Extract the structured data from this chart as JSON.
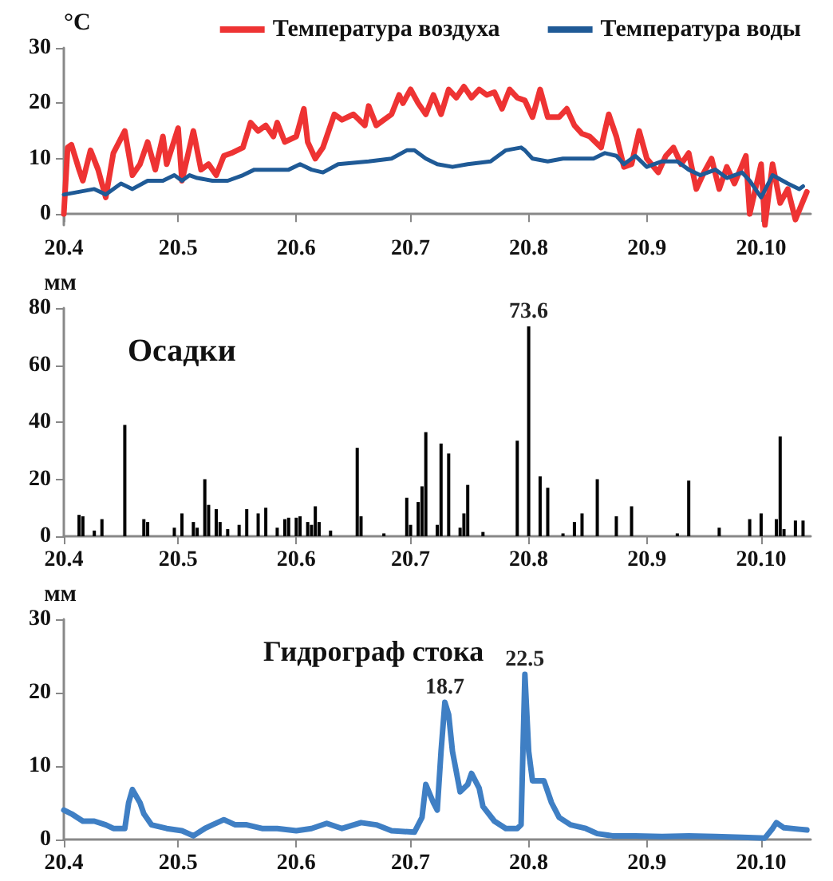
{
  "chart_data": [
    {
      "type": "line",
      "ylabel": "°C",
      "xlim": [
        "--04-20",
        "--11-02"
      ],
      "xticks": [
        {
          "value": "--04-20",
          "label": "20.4"
        },
        {
          "value": "--05-20",
          "label": "20.5"
        },
        {
          "value": "--06-20",
          "label": "20.6"
        },
        {
          "value": "--07-20",
          "label": "20.7"
        },
        {
          "value": "--08-20",
          "label": "20.8"
        },
        {
          "value": "--09-20",
          "label": "20.9"
        },
        {
          "value": "--10-20",
          "label": "20.10"
        }
      ],
      "ylim": [
        -2,
        30
      ],
      "yticks": [
        0,
        10,
        20,
        30
      ],
      "legend": "top right",
      "marker": "none",
      "line_style": "solid",
      "series": [
        {
          "name": "Температура воздуха",
          "color": "#ee3333",
          "x": [
            "--04-20",
            "--04-21",
            "--04-22",
            "--04-24",
            "--04-25",
            "--04-27",
            "--04-29",
            "--05-01",
            "--05-03",
            "--05-06",
            "--05-08",
            "--05-10",
            "--05-12",
            "--05-14",
            "--05-16",
            "--05-17",
            "--05-20",
            "--05-21",
            "--05-24",
            "--05-26",
            "--05-28",
            "--05-30",
            "--06-01",
            "--06-03",
            "--06-06",
            "--06-08",
            "--06-10",
            "--06-12",
            "--06-14",
            "--06-15",
            "--06-17",
            "--06-20",
            "--06-22",
            "--06-23",
            "--06-25",
            "--06-27",
            "--06-30",
            "--07-02",
            "--07-05",
            "--07-08",
            "--07-09",
            "--07-11",
            "--07-15",
            "--07-17",
            "--07-18",
            "--07-20",
            "--07-22",
            "--07-24",
            "--07-26",
            "--07-28",
            "--07-30",
            "--08-01",
            "--08-03",
            "--08-05",
            "--08-07",
            "--08-09",
            "--08-11",
            "--08-13",
            "--08-15",
            "--08-17",
            "--08-19",
            "--08-21",
            "--08-23",
            "--08-25",
            "--08-28",
            "--08-30",
            "--09-01",
            "--09-03",
            "--09-05",
            "--09-08",
            "--09-10",
            "--09-12",
            "--09-14",
            "--09-16",
            "--09-18",
            "--09-20",
            "--09-23",
            "--09-25",
            "--09-27",
            "--09-29",
            "--10-01",
            "--10-03",
            "--10-05",
            "--10-07",
            "--10-09",
            "--10-11",
            "--10-13",
            "--10-16",
            "--10-17",
            "--10-20",
            "--10-21",
            "--10-23",
            "--10-25",
            "--10-27",
            "--10-29",
            "--11-01"
          ],
          "values": [
            0,
            12,
            12.5,
            8,
            6,
            11.5,
            8,
            3,
            11,
            15,
            7,
            9,
            13,
            8,
            14,
            9,
            15.5,
            6,
            15,
            8,
            9,
            7,
            10.5,
            11,
            12,
            16.5,
            15,
            16,
            14,
            16.5,
            13,
            14,
            19,
            13,
            10,
            12,
            18,
            17,
            18,
            16,
            19.5,
            16,
            18,
            21.5,
            20,
            22.5,
            20,
            18,
            21.5,
            18,
            22.5,
            21,
            23,
            21,
            22.5,
            21.5,
            22,
            19,
            22.5,
            21,
            20.5,
            17.5,
            22.5,
            17.5,
            17.5,
            19,
            16,
            14.5,
            14,
            12,
            18,
            14,
            8.5,
            9,
            15,
            10,
            7.5,
            10.5,
            12,
            9,
            11,
            4.5,
            7.5,
            10,
            4.5,
            8.5,
            5.5,
            10.5,
            0,
            9,
            -2,
            9,
            2,
            4.5,
            -1,
            4
          ]
        },
        {
          "name": "Температура воды",
          "color": "#1f5a96",
          "x": [
            "--04-20",
            "--04-24",
            "--04-28",
            "--05-01",
            "--05-05",
            "--05-08",
            "--05-12",
            "--05-16",
            "--05-19",
            "--05-21",
            "--05-23",
            "--05-25",
            "--05-29",
            "--06-02",
            "--06-06",
            "--06-09",
            "--06-14",
            "--06-18",
            "--06-21",
            "--06-24",
            "--06-27",
            "--07-01",
            "--07-09",
            "--07-15",
            "--07-19",
            "--07-21",
            "--07-24",
            "--07-27",
            "--07-31",
            "--08-04",
            "--08-10",
            "--08-14",
            "--08-18",
            "--08-19",
            "--08-21",
            "--08-25",
            "--08-29",
            "--09-02",
            "--09-06",
            "--09-09",
            "--09-12",
            "--09-14",
            "--09-17",
            "--09-20",
            "--09-24",
            "--09-28",
            "--10-01",
            "--10-04",
            "--10-08",
            "--10-11",
            "--10-15",
            "--10-17",
            "--10-20",
            "--10-23",
            "--10-27",
            "--10-30",
            "--10-31"
          ],
          "values": [
            3.5,
            4,
            4.5,
            3.5,
            5.5,
            4.5,
            6,
            6,
            7,
            6,
            7,
            6.5,
            6,
            6,
            7,
            8,
            8,
            8,
            9,
            8,
            7.5,
            9,
            9.5,
            10,
            11.5,
            11.5,
            10,
            9,
            8.5,
            9,
            9.5,
            11.5,
            12,
            11.5,
            10,
            9.5,
            10,
            10,
            10,
            11,
            10.5,
            9,
            10.5,
            8.5,
            9.5,
            9.5,
            8,
            7,
            8,
            6.5,
            7.5,
            6,
            3,
            7,
            5.5,
            4.5,
            5
          ]
        }
      ]
    },
    {
      "type": "bar",
      "title": "Осадки",
      "ylabel": "мм",
      "color": "#000000",
      "xlim": [
        "--04-20",
        "--11-02"
      ],
      "xticks": [
        {
          "value": "--04-20",
          "label": "20.4"
        },
        {
          "value": "--05-20",
          "label": "20.5"
        },
        {
          "value": "--06-20",
          "label": "20.6"
        },
        {
          "value": "--07-20",
          "label": "20.7"
        },
        {
          "value": "--08-20",
          "label": "20.8"
        },
        {
          "value": "--09-20",
          "label": "20.9"
        },
        {
          "value": "--10-20",
          "label": "20.10"
        }
      ],
      "ylim": [
        0,
        80
      ],
      "yticks": [
        0,
        20,
        40,
        60,
        80
      ],
      "x": [
        "--04-24",
        "--04-25",
        "--04-28",
        "--04-30",
        "--05-06",
        "--05-11",
        "--05-12",
        "--05-19",
        "--05-21",
        "--05-24",
        "--05-25",
        "--05-27",
        "--05-28",
        "--05-30",
        "--05-31",
        "--06-02",
        "--06-05",
        "--06-07",
        "--06-10",
        "--06-12",
        "--06-15",
        "--06-17",
        "--06-18",
        "--06-20",
        "--06-21",
        "--06-23",
        "--06-24",
        "--06-25",
        "--06-26",
        "--06-29",
        "--07-06",
        "--07-07",
        "--07-13",
        "--07-19",
        "--07-20",
        "--07-22",
        "--07-23",
        "--07-24",
        "--07-27",
        "--07-28",
        "--07-30",
        "--08-02",
        "--08-03",
        "--08-04",
        "--08-08",
        "--08-17",
        "--08-20",
        "--08-23",
        "--08-25",
        "--08-29",
        "--09-01",
        "--09-03",
        "--09-07",
        "--09-12",
        "--09-16",
        "--09-28",
        "--10-01",
        "--10-09",
        "--10-17",
        "--10-20",
        "--10-24",
        "--10-25",
        "--10-26",
        "--10-29",
        "--10-31"
      ],
      "values": [
        7.5,
        7,
        2,
        6,
        39,
        6,
        5,
        3,
        8,
        5,
        3,
        20,
        11,
        9.5,
        5,
        2.5,
        4,
        9.5,
        8,
        10,
        3,
        6,
        6.5,
        6.5,
        7,
        5,
        4,
        10.5,
        5,
        2,
        31,
        7,
        1,
        13.5,
        4,
        12,
        17.5,
        36.5,
        4,
        32.5,
        29,
        3,
        8,
        18,
        1.5,
        33.5,
        73.6,
        21,
        17,
        1,
        5,
        8,
        20,
        7,
        10.5,
        1,
        19.5,
        3,
        6,
        8,
        6,
        35,
        2.5,
        5.5,
        5.5
      ],
      "value_labels": [
        null,
        null,
        null,
        null,
        null,
        null,
        null,
        null,
        null,
        null,
        null,
        null,
        null,
        null,
        null,
        null,
        null,
        null,
        null,
        null,
        null,
        null,
        null,
        null,
        null,
        null,
        null,
        null,
        null,
        null,
        null,
        null,
        null,
        null,
        null,
        null,
        null,
        null,
        null,
        null,
        null,
        null,
        null,
        null,
        null,
        null,
        "73.6",
        null,
        null,
        null,
        null,
        null,
        null,
        null,
        null,
        null,
        null,
        null,
        null,
        null,
        null,
        null,
        null,
        null,
        null
      ]
    },
    {
      "type": "line",
      "title": "Гидрограф стока",
      "ylabel": "мм",
      "color": "#3f7fc4",
      "marker": "none",
      "line_style": "solid",
      "xlim": [
        "--04-20",
        "--11-02"
      ],
      "xticks": [
        {
          "value": "--04-20",
          "label": "20.4"
        },
        {
          "value": "--05-20",
          "label": "20.5"
        },
        {
          "value": "--06-20",
          "label": "20.6"
        },
        {
          "value": "--07-20",
          "label": "20.7"
        },
        {
          "value": "--08-20",
          "label": "20.8"
        },
        {
          "value": "--09-20",
          "label": "20.9"
        },
        {
          "value": "--10-20",
          "label": "20.10"
        }
      ],
      "ylim": [
        0,
        30
      ],
      "yticks": [
        0,
        10,
        20,
        30
      ],
      "x": [
        "--04-20",
        "--04-22",
        "--04-25",
        "--04-28",
        "--05-01",
        "--05-03",
        "--05-06",
        "--05-07",
        "--05-08",
        "--05-10",
        "--05-11",
        "--05-13",
        "--05-17",
        "--05-21",
        "--05-24",
        "--05-27",
        "--05-29",
        "--06-01",
        "--06-04",
        "--06-07",
        "--06-11",
        "--06-15",
        "--06-20",
        "--06-24",
        "--06-28",
        "--07-02",
        "--07-07",
        "--07-11",
        "--07-15",
        "--07-21",
        "--07-23",
        "--07-24",
        "--07-26",
        "--07-27",
        "--07-28",
        "--07-29",
        "--07-30",
        "--07-31",
        "--08-02",
        "--08-04",
        "--08-05",
        "--08-07",
        "--08-08",
        "--08-11",
        "--08-14",
        "--08-17",
        "--08-18",
        "--08-19",
        "--08-20",
        "--08-21",
        "--08-24",
        "--08-26",
        "--08-28",
        "--08-31",
        "--09-04",
        "--09-07",
        "--09-11",
        "--09-17",
        "--09-24",
        "--10-01",
        "--10-08",
        "--10-15",
        "--10-21",
        "--10-23",
        "--10-24",
        "--10-26",
        "--10-30",
        "--11-01"
      ],
      "values": [
        4,
        3.5,
        2.5,
        2.5,
        2,
        1.5,
        1.5,
        5,
        6.8,
        5,
        3.5,
        2,
        1.5,
        1.2,
        0.5,
        1.5,
        2,
        2.7,
        2,
        2,
        1.5,
        1.5,
        1.2,
        1.5,
        2.2,
        1.5,
        2.3,
        2,
        1.2,
        1,
        3,
        7.5,
        5,
        4,
        12,
        18.7,
        17,
        12,
        6.5,
        7.5,
        9,
        7,
        4.5,
        2.5,
        1.5,
        1.5,
        2,
        22.5,
        12,
        8,
        8,
        5,
        3,
        2,
        1.5,
        0.8,
        0.5,
        0.5,
        0.4,
        0.5,
        0.4,
        0.3,
        0.2,
        1.5,
        2.3,
        1.6,
        1.4,
        1.3
      ],
      "value_labels": [
        null,
        null,
        null,
        null,
        null,
        null,
        null,
        null,
        null,
        null,
        null,
        null,
        null,
        null,
        null,
        null,
        null,
        null,
        null,
        null,
        null,
        null,
        null,
        null,
        null,
        null,
        null,
        null,
        null,
        null,
        null,
        null,
        null,
        null,
        null,
        "18.7",
        null,
        null,
        null,
        null,
        null,
        null,
        null,
        null,
        null,
        null,
        null,
        "22.5",
        null,
        null,
        null,
        null,
        null,
        null,
        null,
        null,
        null,
        null,
        null,
        null,
        null,
        null,
        null,
        null,
        null,
        null,
        null,
        null
      ]
    }
  ]
}
